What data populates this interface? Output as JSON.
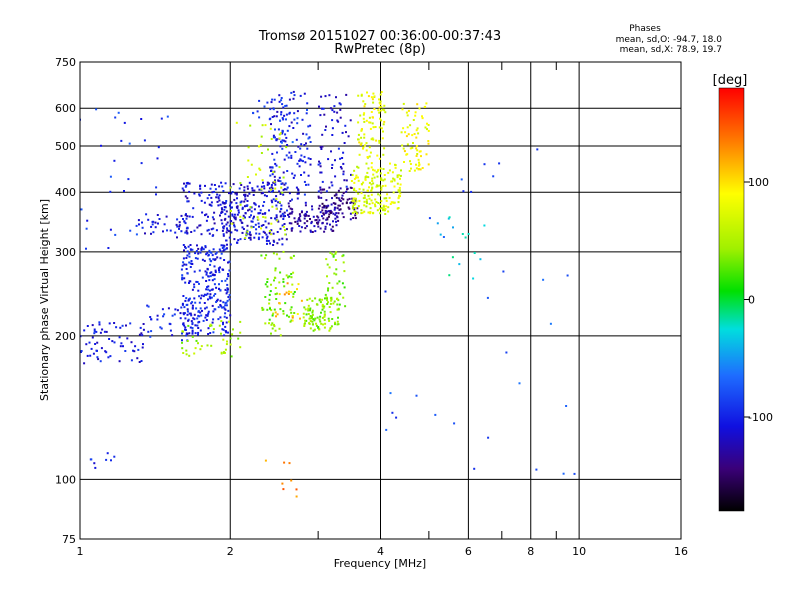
{
  "chart_data": {
    "type": "scatter",
    "title": "Tromsø 20151027 00:36:00-00:37:43",
    "subtitle": "RwPretec (8p)",
    "xlabel": "Frequency [MHz]",
    "ylabel": "Stationary phase Virtual Height [km]",
    "x_scale": "log",
    "y_scale": "log",
    "xlim": [
      1,
      16
    ],
    "ylim": [
      75,
      750
    ],
    "x_tick_values": [
      1,
      2,
      4,
      6,
      8,
      10,
      16
    ],
    "x_tick_labels": [
      "1",
      "2",
      "4",
      "6",
      "8",
      "10",
      "16"
    ],
    "x_minor_ticks": [
      3,
      5,
      7,
      9
    ],
    "y_tick_values": [
      75,
      100,
      200,
      300,
      400,
      500,
      600,
      750
    ],
    "y_tick_labels": [
      "75",
      "100",
      "200",
      "300",
      "400",
      "500",
      "600",
      "750"
    ],
    "grid": true,
    "stats_header": "Phases",
    "stats": [
      "mean, sd,O: -94.7, 18.0",
      "mean, sd,X:  78.9, 19.7"
    ],
    "colorbar": {
      "label": "[deg]",
      "range": [
        -180,
        180
      ],
      "tick_values": [
        100,
        0,
        -100
      ],
      "tick_labels": [
        "100",
        "0",
        "-100"
      ]
    },
    "series": [
      {
        "clusters": [
          {
            "freq": [
              1.0,
              1.35
            ],
            "height": [
              175,
              215
            ],
            "phase": -105,
            "n": 70
          },
          {
            "freq": [
              1.35,
              1.7
            ],
            "height": [
              195,
              235
            ],
            "phase": -100,
            "n": 40
          },
          {
            "freq": [
              1.6,
              2.0
            ],
            "height": [
              200,
              310
            ],
            "phase": -100,
            "n": 280
          },
          {
            "freq": [
              1.6,
              2.1
            ],
            "height": [
              180,
              215
            ],
            "phase": 45,
            "n": 45
          },
          {
            "freq": [
              1.6,
              2.0
            ],
            "height": [
              300,
              420
            ],
            "phase": -110,
            "n": 110
          },
          {
            "freq": [
              1.3,
              1.65
            ],
            "height": [
              320,
              360
            ],
            "phase": -110,
            "n": 40
          },
          {
            "freq": [
              1.9,
              2.6
            ],
            "height": [
              310,
              420
            ],
            "phase": -110,
            "n": 240
          },
          {
            "freq": [
              2.4,
              2.9
            ],
            "height": [
              380,
              650
            ],
            "phase": -105,
            "n": 150
          },
          {
            "freq": [
              2.6,
              3.3
            ],
            "height": [
              330,
              380
            ],
            "phase": -130,
            "n": 100
          },
          {
            "freq": [
              3.0,
              3.5
            ],
            "height": [
              400,
              640
            ],
            "phase": -110,
            "n": 70
          },
          {
            "freq": [
              3.0,
              3.6
            ],
            "height": [
              350,
              410
            ],
            "phase": -140,
            "n": 80
          },
          {
            "freq": [
              3.5,
              4.4
            ],
            "height": [
              360,
              460
            ],
            "phase": 70,
            "n": 180
          },
          {
            "freq": [
              3.6,
              4.1
            ],
            "height": [
              460,
              650
            ],
            "phase": 80,
            "n": 90
          },
          {
            "freq": [
              4.4,
              5.0
            ],
            "height": [
              440,
              620
            ],
            "phase": 85,
            "n": 70
          },
          {
            "freq": [
              2.0,
              2.6
            ],
            "height": [
              320,
              560
            ],
            "phase": 60,
            "n": 60
          },
          {
            "freq": [
              2.3,
              2.7
            ],
            "height": [
              200,
              300
            ],
            "phase": 35,
            "n": 80
          },
          {
            "freq": [
              2.8,
              3.3
            ],
            "height": [
              205,
              240
            ],
            "phase": 40,
            "n": 100
          },
          {
            "freq": [
              3.1,
              3.4
            ],
            "height": [
              230,
              300
            ],
            "phase": 35,
            "n": 40
          },
          {
            "freq": [
              2.4,
              2.8
            ],
            "height": [
              215,
              260
            ],
            "phase": 110,
            "n": 20
          },
          {
            "freq": [
              1.0,
              1.5
            ],
            "height": [
              300,
              600
            ],
            "phase": -90,
            "n": 35
          },
          {
            "freq": [
              2.2,
              2.9
            ],
            "height": [
              500,
              650
            ],
            "phase": -80,
            "n": 25
          },
          {
            "freq": [
              1.05,
              1.2
            ],
            "height": [
              105,
              115
            ],
            "phase": -100,
            "n": 8
          },
          {
            "freq": [
              4.0,
              9.8
            ],
            "height": [
              100,
              500
            ],
            "phase": -80,
            "n": 30
          },
          {
            "freq": [
              5.0,
              6.5
            ],
            "height": [
              250,
              360
            ],
            "phase": -30,
            "n": 15
          },
          {
            "freq": [
              2.3,
              2.8
            ],
            "height": [
              90,
              110
            ],
            "phase": 130,
            "n": 8
          }
        ]
      }
    ]
  }
}
